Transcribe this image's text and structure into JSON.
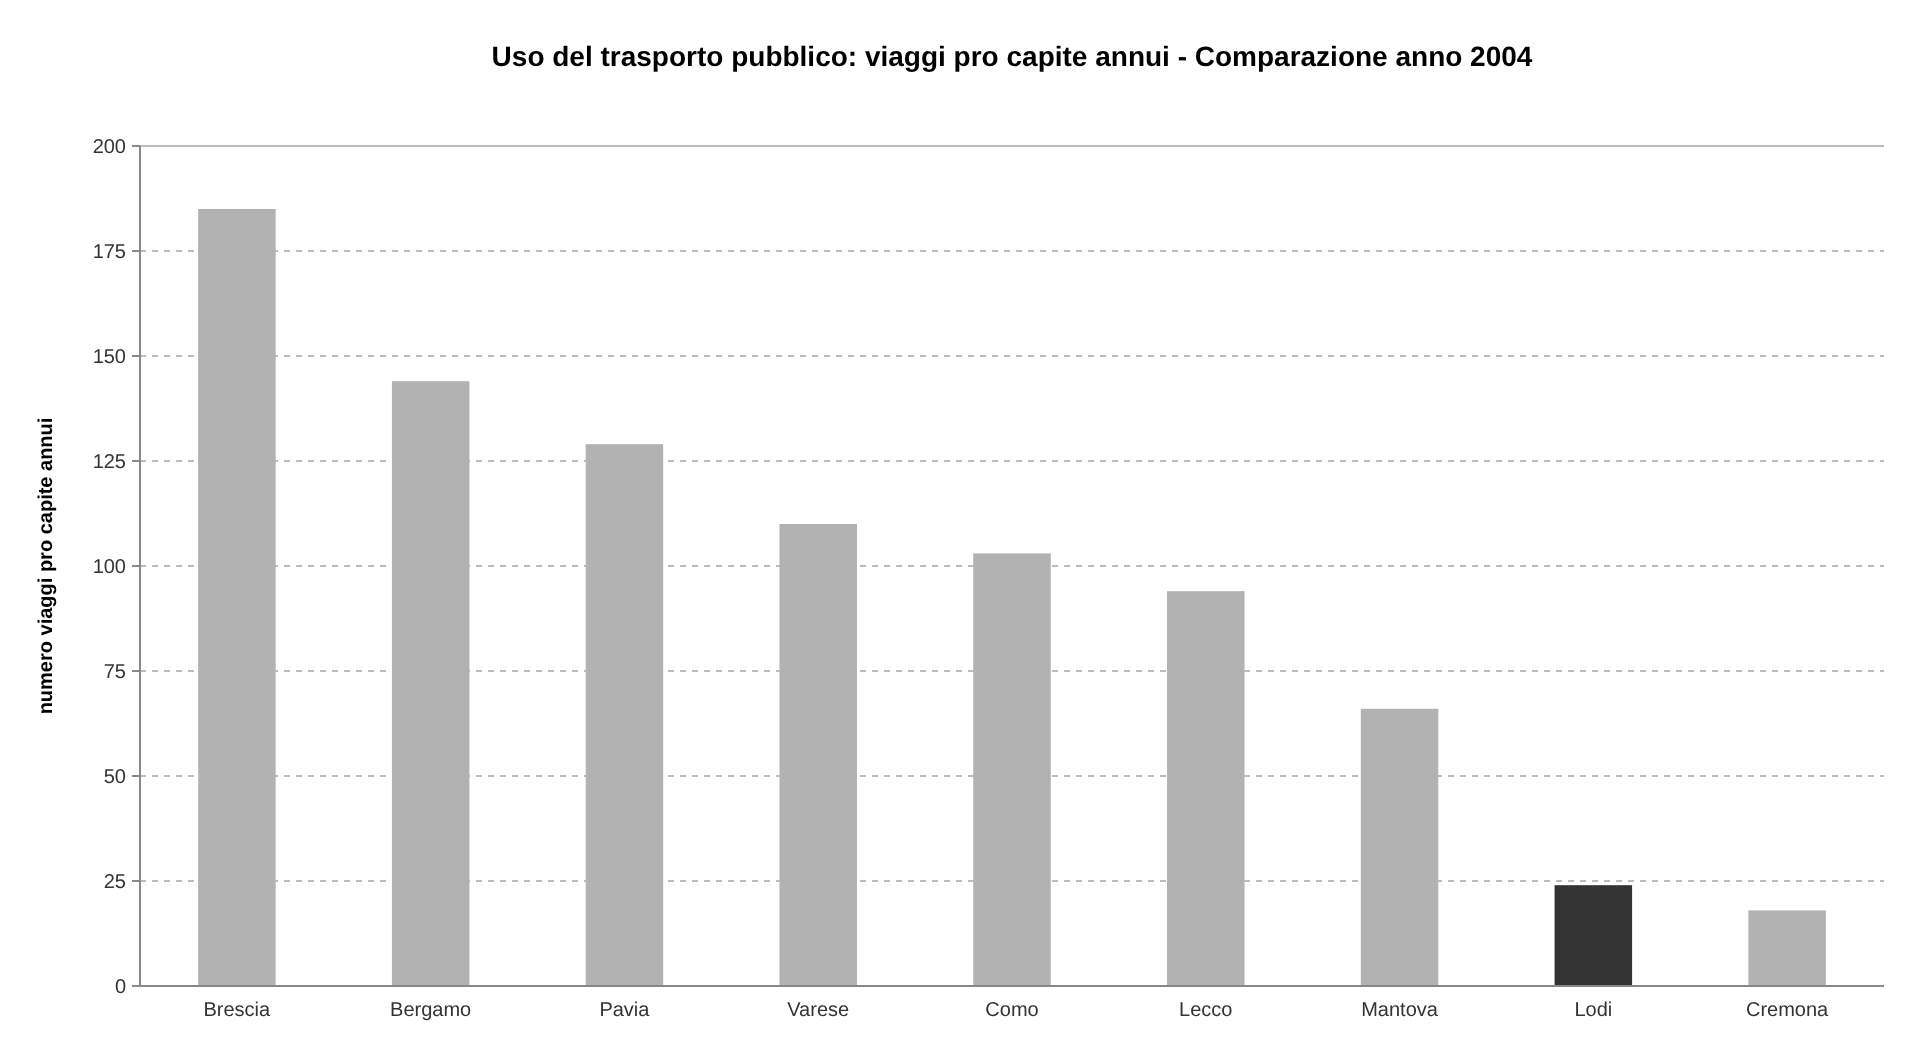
{
  "chart_data": {
    "type": "bar",
    "title": "Uso del trasporto pubblico: viaggi pro capite annui - Comparazione anno 2004",
    "ylabel": "numero viaggi pro capite annui",
    "categories": [
      "Brescia",
      "Bergamo",
      "Pavia",
      "Varese",
      "Como",
      "Lecco",
      "Mantova",
      "Lodi",
      "Cremona"
    ],
    "values": [
      185,
      144,
      129,
      110,
      103,
      94,
      66,
      24,
      18
    ],
    "colors": [
      "#b2b2b2",
      "#b2b2b2",
      "#b2b2b2",
      "#b2b2b2",
      "#b2b2b2",
      "#b2b2b2",
      "#b2b2b2",
      "#333333",
      "#b2b2b2"
    ],
    "ylim": [
      0,
      200
    ],
    "yticks": [
      0,
      25,
      50,
      75,
      100,
      125,
      150,
      175,
      200
    ],
    "grid": "y"
  }
}
